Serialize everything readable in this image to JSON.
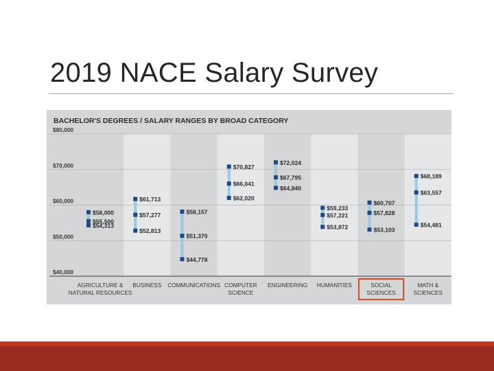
{
  "slide": {
    "title": "2019 NACE Salary Survey"
  },
  "colors": {
    "panel": "#d4d6d7",
    "column_alt": "#e6e7e8",
    "range_bar": "#9cc9e2",
    "marker": "#1e4b86",
    "highlight_box": "#d2542a",
    "footer": "#9b2a1e",
    "footer_accent": "#c0391d"
  },
  "chart_data": {
    "type": "range",
    "title": "BACHELOR'S DEGREES / SALARY RANGES BY BROAD CATEGORY",
    "y_ticks": [
      "$80,000",
      "$70,000",
      "$60,000",
      "$50,000",
      "$40,000"
    ],
    "ylim": [
      40000,
      80000
    ],
    "highlighted_category": "SOCIAL SCIENCES",
    "categories": [
      {
        "label": [
          "AGRICULTURE &",
          "NATURAL RESOURCES"
        ],
        "values": [
          58000,
          55500,
          54313
        ],
        "labels": [
          "$58,000",
          "$55,500",
          "$54,313"
        ]
      },
      {
        "label": [
          "BUSINESS"
        ],
        "values": [
          61713,
          57277,
          52813
        ],
        "labels": [
          "$61,713",
          "$57,277",
          "$52,813"
        ]
      },
      {
        "label": [
          "COMMUNICATIONS"
        ],
        "values": [
          58157,
          51370,
          44778
        ],
        "labels": [
          "$58,157",
          "$51,370",
          "$44,778"
        ]
      },
      {
        "label": [
          "COMPUTER",
          "SCIENCE"
        ],
        "values": [
          70827,
          66041,
          62020
        ],
        "labels": [
          "$70,827",
          "$66,041",
          "$62,020"
        ]
      },
      {
        "label": [
          "ENGINEERING"
        ],
        "values": [
          72024,
          67795,
          64840
        ],
        "labels": [
          "$72,024",
          "$67,795",
          "$64,840"
        ]
      },
      {
        "label": [
          "HUMANITIES"
        ],
        "values": [
          59233,
          57221,
          53872
        ],
        "labels": [
          "$59,233",
          "$57,221",
          "$53,872"
        ]
      },
      {
        "label": [
          "SOCIAL",
          "SCIENCES"
        ],
        "values": [
          60707,
          57828,
          53103
        ],
        "labels": [
          "$60,707",
          "$57,828",
          "$53,103"
        ]
      },
      {
        "label": [
          "MATH &",
          "SCIENCES"
        ],
        "values": [
          68189,
          63557,
          54481
        ],
        "labels": [
          "$68,189",
          "$63,557",
          "$54,481"
        ]
      }
    ]
  }
}
